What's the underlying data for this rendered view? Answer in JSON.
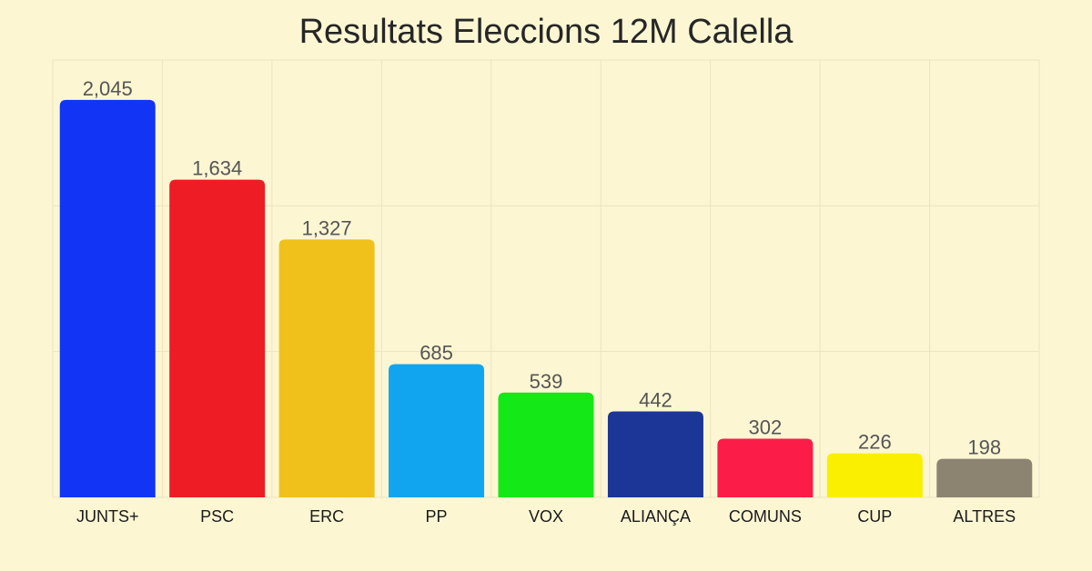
{
  "chart_data": {
    "type": "bar",
    "title": "Resultats Eleccions 12M Calella",
    "categories": [
      "JUNTS+",
      "PSC",
      "ERC",
      "PP",
      "VOX",
      "ALIANÇA",
      "COMUNS",
      "CUP",
      "ALTRES"
    ],
    "values": [
      2045,
      1634,
      1327,
      685,
      539,
      442,
      302,
      226,
      198
    ],
    "value_labels": [
      "2,045",
      "1,634",
      "1,327",
      "685",
      "539",
      "442",
      "302",
      "226",
      "198"
    ],
    "colors": [
      "#1234f5",
      "#ee1c24",
      "#f0c11b",
      "#12a5ef",
      "#14e816",
      "#1b3696",
      "#fc1c48",
      "#fbef00",
      "#8c8470"
    ],
    "ylim": [
      0,
      2250
    ],
    "grid": true,
    "background": "#fcf6d3",
    "xlabel": "",
    "ylabel": ""
  }
}
